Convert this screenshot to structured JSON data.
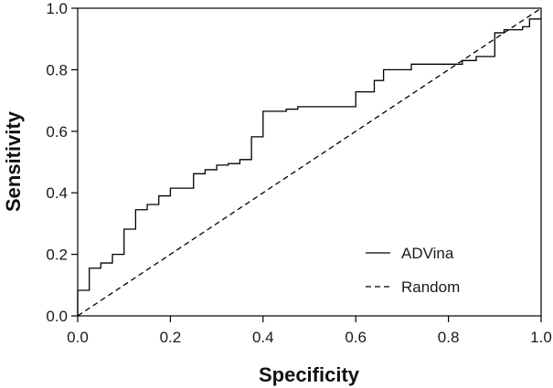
{
  "chart_data": {
    "type": "line",
    "title": "",
    "xlabel": "Specificity",
    "ylabel": "Sensitivity",
    "xlim": [
      0,
      1
    ],
    "ylim": [
      0,
      1
    ],
    "x_ticks": [
      "0.0",
      "0.2",
      "0.4",
      "0.6",
      "0.8",
      "1.0"
    ],
    "y_ticks": [
      "0.0",
      "0.2",
      "0.4",
      "0.6",
      "0.8",
      "1.0"
    ],
    "grid": false,
    "legend_position": "bottom-right",
    "series": [
      {
        "name": "ADVina",
        "style": "solid",
        "color": "#000000",
        "points": [
          [
            0.0,
            0.0
          ],
          [
            0.0,
            0.083
          ],
          [
            0.025,
            0.083
          ],
          [
            0.025,
            0.155
          ],
          [
            0.05,
            0.155
          ],
          [
            0.05,
            0.172
          ],
          [
            0.075,
            0.172
          ],
          [
            0.075,
            0.2
          ],
          [
            0.1,
            0.2
          ],
          [
            0.1,
            0.282
          ],
          [
            0.125,
            0.282
          ],
          [
            0.125,
            0.345
          ],
          [
            0.15,
            0.345
          ],
          [
            0.15,
            0.362
          ],
          [
            0.175,
            0.362
          ],
          [
            0.175,
            0.39
          ],
          [
            0.2,
            0.39
          ],
          [
            0.2,
            0.415
          ],
          [
            0.25,
            0.415
          ],
          [
            0.25,
            0.462
          ],
          [
            0.275,
            0.462
          ],
          [
            0.275,
            0.475
          ],
          [
            0.3,
            0.475
          ],
          [
            0.3,
            0.49
          ],
          [
            0.325,
            0.49
          ],
          [
            0.325,
            0.495
          ],
          [
            0.35,
            0.495
          ],
          [
            0.35,
            0.508
          ],
          [
            0.375,
            0.508
          ],
          [
            0.375,
            0.582
          ],
          [
            0.4,
            0.582
          ],
          [
            0.4,
            0.665
          ],
          [
            0.45,
            0.665
          ],
          [
            0.45,
            0.672
          ],
          [
            0.475,
            0.672
          ],
          [
            0.475,
            0.68
          ],
          [
            0.6,
            0.68
          ],
          [
            0.6,
            0.728
          ],
          [
            0.64,
            0.728
          ],
          [
            0.64,
            0.765
          ],
          [
            0.66,
            0.765
          ],
          [
            0.66,
            0.8
          ],
          [
            0.72,
            0.8
          ],
          [
            0.72,
            0.818
          ],
          [
            0.83,
            0.818
          ],
          [
            0.83,
            0.83
          ],
          [
            0.86,
            0.83
          ],
          [
            0.86,
            0.843
          ],
          [
            0.9,
            0.843
          ],
          [
            0.9,
            0.92
          ],
          [
            0.92,
            0.92
          ],
          [
            0.92,
            0.93
          ],
          [
            0.96,
            0.93
          ],
          [
            0.96,
            0.94
          ],
          [
            0.975,
            0.94
          ],
          [
            0.975,
            0.965
          ],
          [
            1.0,
            0.965
          ]
        ]
      },
      {
        "name": "Random",
        "style": "dashed",
        "color": "#000000",
        "points": [
          [
            0.0,
            0.0
          ],
          [
            1.0,
            1.0
          ]
        ]
      }
    ]
  }
}
